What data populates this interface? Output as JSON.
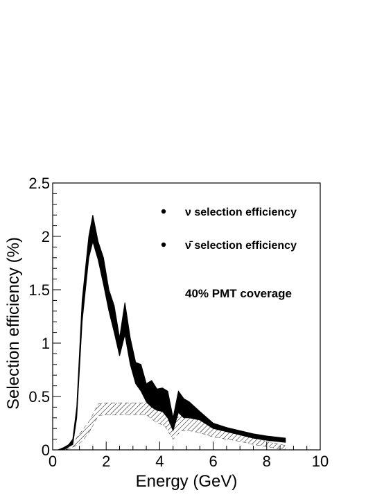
{
  "chart_data": {
    "type": "area",
    "xlabel": "Energy (GeV)",
    "ylabel": "Selection efficiency (%)",
    "xlim": [
      0,
      10
    ],
    "ylim": [
      0,
      2.5
    ],
    "xticks": [
      "0",
      "2",
      "4",
      "6",
      "8",
      "10"
    ],
    "yticks": [
      "0",
      "0.5",
      "1",
      "1.5",
      "2",
      "2.5"
    ],
    "grid": false,
    "legend_position": "top-right",
    "annotation": "40% PMT coverage",
    "series": [
      {
        "name": "ν selection efficiency",
        "style": "solid-band",
        "color": "#000000",
        "x": [
          0.2,
          0.4,
          0.6,
          0.75,
          0.9,
          1.1,
          1.35,
          1.5,
          1.7,
          1.9,
          2.1,
          2.3,
          2.5,
          2.7,
          2.9,
          3.1,
          3.3,
          3.5,
          3.7,
          3.9,
          4.1,
          4.3,
          4.5,
          4.7,
          4.9,
          5.1,
          5.5,
          6.0,
          6.5,
          7.0,
          7.5,
          8.0,
          8.7
        ],
        "upper": [
          0.0,
          0.02,
          0.05,
          0.1,
          0.4,
          1.4,
          2.0,
          2.2,
          1.95,
          1.8,
          1.5,
          1.35,
          1.05,
          1.38,
          1.05,
          0.82,
          0.8,
          0.62,
          0.65,
          0.57,
          0.58,
          0.55,
          0.3,
          0.55,
          0.48,
          0.45,
          0.36,
          0.25,
          0.21,
          0.18,
          0.15,
          0.13,
          0.11
        ],
        "lower": [
          0.0,
          0.0,
          0.03,
          0.05,
          0.3,
          1.2,
          1.8,
          1.95,
          1.78,
          1.55,
          1.3,
          1.1,
          0.88,
          1.08,
          0.8,
          0.62,
          0.55,
          0.45,
          0.4,
          0.37,
          0.36,
          0.3,
          0.18,
          0.35,
          0.3,
          0.3,
          0.28,
          0.2,
          0.17,
          0.14,
          0.11,
          0.09,
          0.07
        ]
      },
      {
        "name": "ν̄ selection efficiency",
        "style": "hatched-band",
        "color": "#000000",
        "x": [
          0.5,
          0.8,
          1.1,
          1.4,
          1.7,
          2.0,
          2.5,
          3.0,
          3.5,
          3.8,
          4.2,
          4.5,
          4.8,
          5.1,
          5.5,
          6.0,
          6.5,
          7.0,
          7.5,
          8.0,
          8.7
        ],
        "upper": [
          0.0,
          0.08,
          0.18,
          0.28,
          0.43,
          0.44,
          0.44,
          0.44,
          0.44,
          0.4,
          0.34,
          0.28,
          0.32,
          0.3,
          0.28,
          0.24,
          0.2,
          0.16,
          0.12,
          0.08,
          0.04
        ],
        "lower": [
          0.0,
          0.03,
          0.08,
          0.18,
          0.32,
          0.33,
          0.33,
          0.33,
          0.33,
          0.27,
          0.22,
          0.1,
          0.18,
          0.18,
          0.16,
          0.12,
          0.1,
          0.08,
          0.05,
          0.03,
          0.0
        ]
      }
    ]
  }
}
